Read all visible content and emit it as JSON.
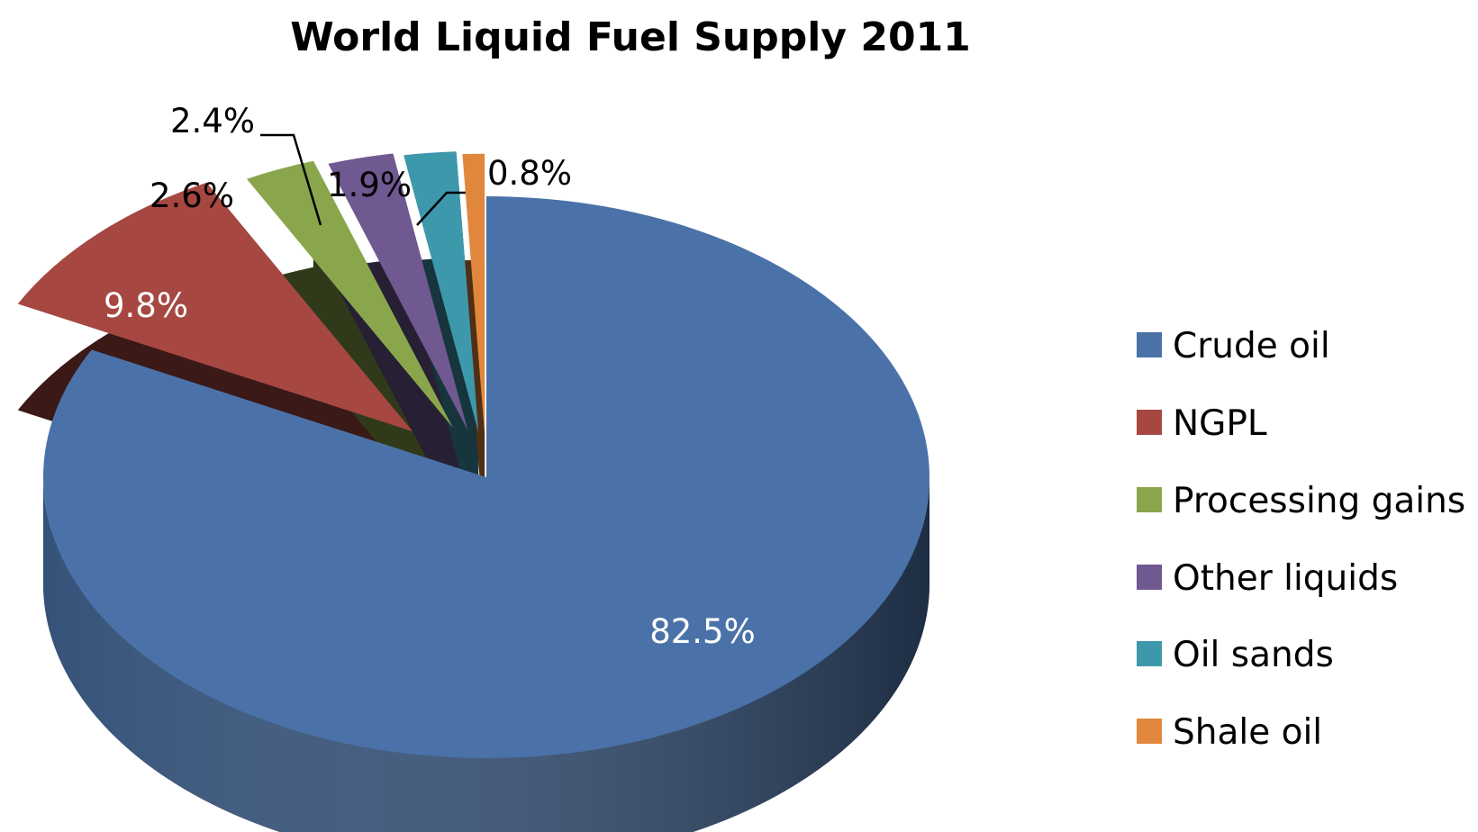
{
  "chart_data": {
    "type": "pie",
    "title": "World Liquid Fuel Supply 2011",
    "variant": "3d-exploded",
    "legend_position": "right",
    "categories": [
      "Crude oil",
      "NGPL",
      "Processing gains",
      "Other liquids",
      "Oil sands",
      "Shale oil"
    ],
    "values": [
      82.5,
      9.8,
      2.6,
      2.4,
      1.9,
      0.8
    ],
    "labels": [
      "82.5%",
      "9.8%",
      "2.6%",
      "2.4%",
      "1.9%",
      "0.8%"
    ],
    "colors": [
      "#4A72A8",
      "#A64742",
      "#8AA64C",
      "#705891",
      "#3E98AC",
      "#E1873D"
    ]
  }
}
